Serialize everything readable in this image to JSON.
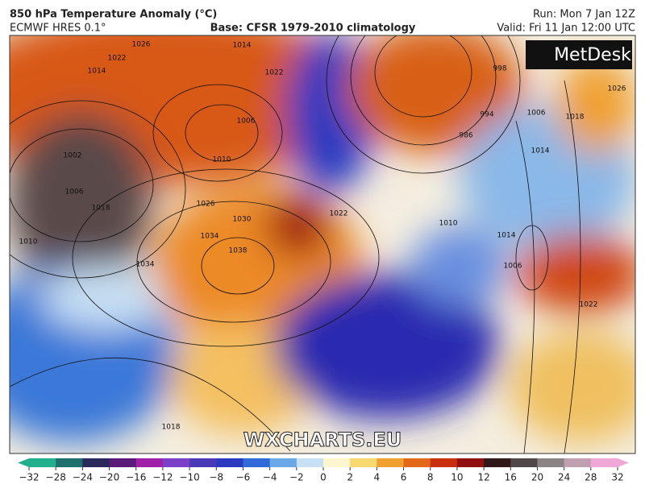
{
  "header": {
    "title": "850 hPa Temperature Anomaly (°C)",
    "model": "ECMWF HRES 0.1°",
    "base": "Base: CFSR 1979-2010 climatology",
    "run": "Run: Mon 7 Jan 12Z",
    "valid": "Valid: Fri 11 Jan 12:00 UTC"
  },
  "logo": "MetDesk",
  "watermark": "WXCHARTS.EU",
  "isobar_labels": [
    "1026",
    "1022",
    "1014",
    "1014",
    "1022",
    "1006",
    "1010",
    "1002",
    "1006",
    "1018",
    "1010",
    "1026",
    "1030",
    "1034",
    "1038",
    "1034",
    "1022",
    "1010",
    "1014",
    "1006",
    "1018",
    "1014",
    "1006",
    "994",
    "986",
    "998",
    "1026",
    "1018",
    "1022"
  ],
  "colorbar": {
    "ticks": [
      "−32",
      "−28",
      "−24",
      "−20",
      "−16",
      "−12",
      "−10",
      "−8",
      "−6",
      "−4",
      "−2",
      "0",
      "2",
      "4",
      "6",
      "8",
      "10",
      "12",
      "16",
      "20",
      "24",
      "28",
      "32"
    ],
    "colors": [
      "#22b08f",
      "#1f6f6c",
      "#2a2a5a",
      "#5a1a78",
      "#a020a8",
      "#7a40c8",
      "#4a3ab8",
      "#2c3ac0",
      "#2f6ad8",
      "#6aa8e8",
      "#c8e0f4",
      "#fff6d0",
      "#f8d870",
      "#f0a030",
      "#e06818",
      "#c83010",
      "#901010",
      "#301818",
      "#504848",
      "#8a8484",
      "#c0a0b0",
      "#f0a8d8"
    ]
  }
}
